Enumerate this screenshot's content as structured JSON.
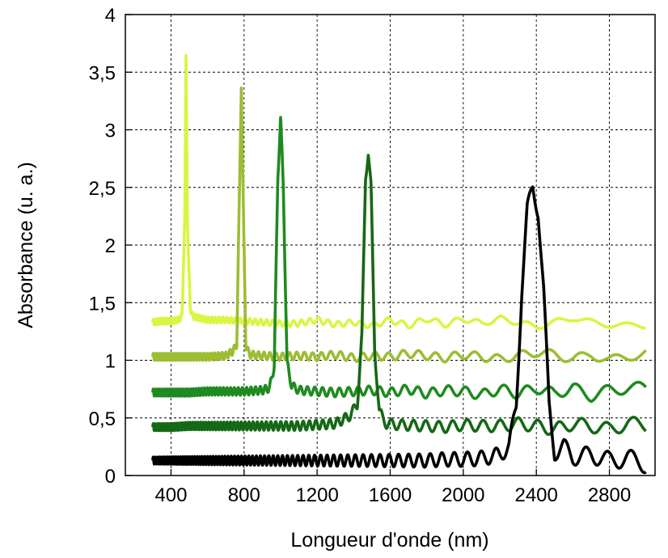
{
  "chart_data": {
    "type": "line",
    "xlabel": "Longueur d'onde (nm)",
    "ylabel": "Absorbance (u. a.)",
    "xlim": [
      150,
      3050
    ],
    "ylim": [
      0,
      4
    ],
    "xticks": [
      400,
      800,
      1200,
      1600,
      2000,
      2400,
      2800
    ],
    "xtick_labels": [
      "400",
      "800",
      "1200",
      "1600",
      "2000",
      "2400",
      "2800"
    ],
    "yticks": [
      0,
      0.5,
      1,
      1.5,
      2,
      2.5,
      3,
      3.5,
      4
    ],
    "ytick_labels": [
      "0",
      "0,5",
      "1",
      "1,5",
      "2",
      "2,5",
      "3",
      "3,5",
      "4"
    ],
    "grid": true,
    "legend": "none",
    "series": [
      {
        "color": "#d9f542",
        "x": [
          300,
          350,
          400,
          440,
          460,
          475,
          482,
          490,
          505,
          520,
          600,
          700,
          800,
          900,
          1000,
          1100,
          1200,
          1300,
          1400,
          1500,
          1600,
          1700,
          1800,
          1900,
          2000,
          2100,
          2200,
          2300,
          2400,
          2500,
          2600,
          2700,
          2800,
          2900,
          3000
        ],
        "y": [
          1.33,
          1.34,
          1.34,
          1.35,
          1.38,
          2.2,
          3.7,
          2.2,
          1.45,
          1.38,
          1.35,
          1.35,
          1.34,
          1.33,
          1.32,
          1.32,
          1.35,
          1.31,
          1.33,
          1.3,
          1.35,
          1.3,
          1.36,
          1.31,
          1.36,
          1.32,
          1.36,
          1.33,
          1.29,
          1.33,
          1.37,
          1.33,
          1.31,
          1.3,
          1.3
        ],
        "ripple": {
          "amp_start": 0.025,
          "amp_end": 0.025,
          "period_start": 12,
          "period_end": 230
        }
      },
      {
        "color": "#9dbd32",
        "x": [
          300,
          400,
          500,
          600,
          700,
          740,
          760,
          775,
          785,
          795,
          810,
          830,
          900,
          1000,
          1100,
          1200,
          1300,
          1400,
          1500,
          1600,
          1700,
          1800,
          1900,
          2000,
          2100,
          2200,
          2300,
          2400,
          2500,
          2600,
          2700,
          2800,
          2900,
          3000
        ],
        "y": [
          1.03,
          1.03,
          1.03,
          1.03,
          1.04,
          1.08,
          1.14,
          2.5,
          3.4,
          2.4,
          1.12,
          1.05,
          1.04,
          1.03,
          1.04,
          1.03,
          1.05,
          1.02,
          1.04,
          1.03,
          1.06,
          1.04,
          1.02,
          1.05,
          1.03,
          1.01,
          1.04,
          1.07,
          1.05,
          1.01,
          1.05,
          1.0,
          1.03,
          1.07
        ],
        "ripple": {
          "amp_start": 0.03,
          "amp_end": 0.04,
          "period_start": 12,
          "period_end": 220
        }
      },
      {
        "color": "#1f8a1f",
        "x": [
          300,
          400,
          500,
          600,
          700,
          800,
          900,
          940,
          965,
          985,
          1000,
          1015,
          1035,
          1060,
          1100,
          1200,
          1300,
          1400,
          1500,
          1600,
          1700,
          1800,
          1900,
          2000,
          2100,
          2200,
          2300,
          2400,
          2500,
          2600,
          2700,
          2800,
          2900,
          3000
        ],
        "y": [
          0.72,
          0.72,
          0.72,
          0.73,
          0.73,
          0.73,
          0.74,
          0.76,
          0.95,
          2.6,
          3.1,
          2.5,
          0.98,
          0.78,
          0.74,
          0.73,
          0.72,
          0.73,
          0.74,
          0.72,
          0.75,
          0.71,
          0.74,
          0.73,
          0.7,
          0.75,
          0.71,
          0.76,
          0.71,
          0.76,
          0.69,
          0.74,
          0.76,
          0.76
        ],
        "ripple": {
          "amp_start": 0.03,
          "amp_end": 0.05,
          "period_start": 11,
          "period_end": 190
        }
      },
      {
        "color": "#156815",
        "x": [
          300,
          400,
          500,
          600,
          700,
          800,
          900,
          1000,
          1100,
          1200,
          1300,
          1380,
          1420,
          1445,
          1465,
          1480,
          1495,
          1515,
          1540,
          1580,
          1650,
          1800,
          1900,
          2000,
          2100,
          2200,
          2300,
          2400,
          2500,
          2600,
          2700,
          2800,
          2900,
          3000
        ],
        "y": [
          0.42,
          0.42,
          0.43,
          0.43,
          0.43,
          0.43,
          0.43,
          0.43,
          0.43,
          0.44,
          0.45,
          0.52,
          0.62,
          1.2,
          2.6,
          2.8,
          2.5,
          1.1,
          0.55,
          0.45,
          0.44,
          0.43,
          0.42,
          0.44,
          0.43,
          0.43,
          0.45,
          0.43,
          0.4,
          0.45,
          0.43,
          0.4,
          0.45,
          0.44
        ],
        "ripple": {
          "amp_start": 0.03,
          "amp_end": 0.06,
          "period_start": 11,
          "period_end": 160
        }
      },
      {
        "color": "#000000",
        "x": [
          300,
          400,
          500,
          600,
          700,
          800,
          900,
          1000,
          1100,
          1200,
          1300,
          1400,
          1500,
          1600,
          1700,
          1800,
          1900,
          2000,
          2100,
          2200,
          2250,
          2290,
          2320,
          2350,
          2380,
          2410,
          2440,
          2470,
          2500,
          2550,
          2600,
          2700,
          2800,
          2900,
          3000
        ],
        "y": [
          0.13,
          0.13,
          0.13,
          0.13,
          0.13,
          0.13,
          0.13,
          0.13,
          0.13,
          0.13,
          0.13,
          0.13,
          0.13,
          0.13,
          0.13,
          0.13,
          0.14,
          0.14,
          0.15,
          0.18,
          0.25,
          0.6,
          1.6,
          2.3,
          2.5,
          2.3,
          1.6,
          0.6,
          0.2,
          0.25,
          0.16,
          0.18,
          0.13,
          0.15,
          0.1
        ],
        "ripple": {
          "amp_start": 0.03,
          "amp_end": 0.08,
          "period_start": 11,
          "period_end": 140
        }
      }
    ]
  }
}
